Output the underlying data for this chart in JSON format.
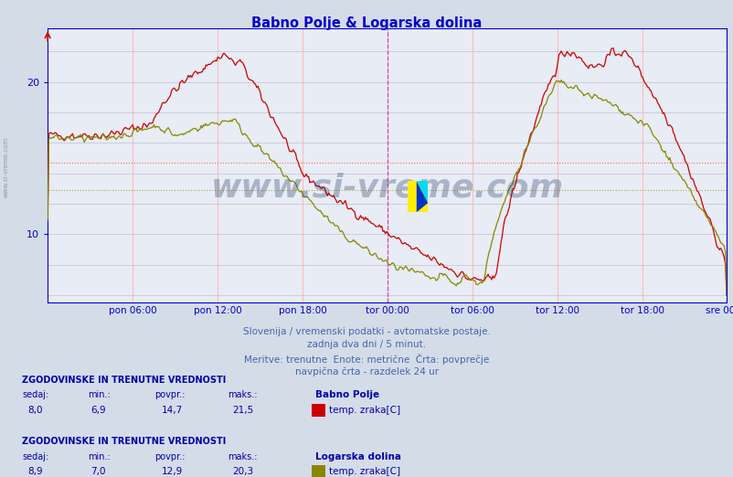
{
  "title": "Babno Polje & Logarska dolina",
  "title_color": "#0000cc",
  "bg_color": "#d4dce8",
  "plot_bg_color": "#e8ecf4",
  "grid_color_v": "#ffaaaa",
  "grid_color_h": "#c8c8d8",
  "line1_color": "#cc0000",
  "line2_color": "#888800",
  "avg_line1_color": "#ff6666",
  "avg_line2_color": "#aaaa44",
  "vline_color": "#cc44cc",
  "axis_color": "#0000cc",
  "text_color": "#0000aa",
  "yticks": [
    10,
    20
  ],
  "ymin": 5.5,
  "ymax": 23.5,
  "xlabel_ticks": [
    "pon 06:00",
    "pon 12:00",
    "pon 18:00",
    "tor 00:00",
    "tor 06:00",
    "tor 12:00",
    "tor 18:00",
    "sre 00:00"
  ],
  "n_points": 576,
  "avg1": 14.7,
  "avg2": 12.9,
  "subtitle_lines": [
    "Slovenija / vremenski podatki - avtomatske postaje.",
    "zadnja dva dni / 5 minut.",
    "Meritve: trenutne  Enote: metrične  Črta: povprečje",
    "navpična črta - razdelek 24 ur"
  ],
  "station1_name": "Babno Polje",
  "station2_name": "Logarska dolina",
  "legend_label": "temp. zraka[C]",
  "stats1": {
    "sedaj": "8,0",
    "min": "6,9",
    "povpr": "14,7",
    "maks": "21,5"
  },
  "stats2": {
    "sedaj": "8,9",
    "min": "7,0",
    "povpr": "12,9",
    "maks": "20,3"
  },
  "watermark": "www.si-vreme.com",
  "watermark_color": "#1a3560",
  "watermark_alpha": 0.3
}
